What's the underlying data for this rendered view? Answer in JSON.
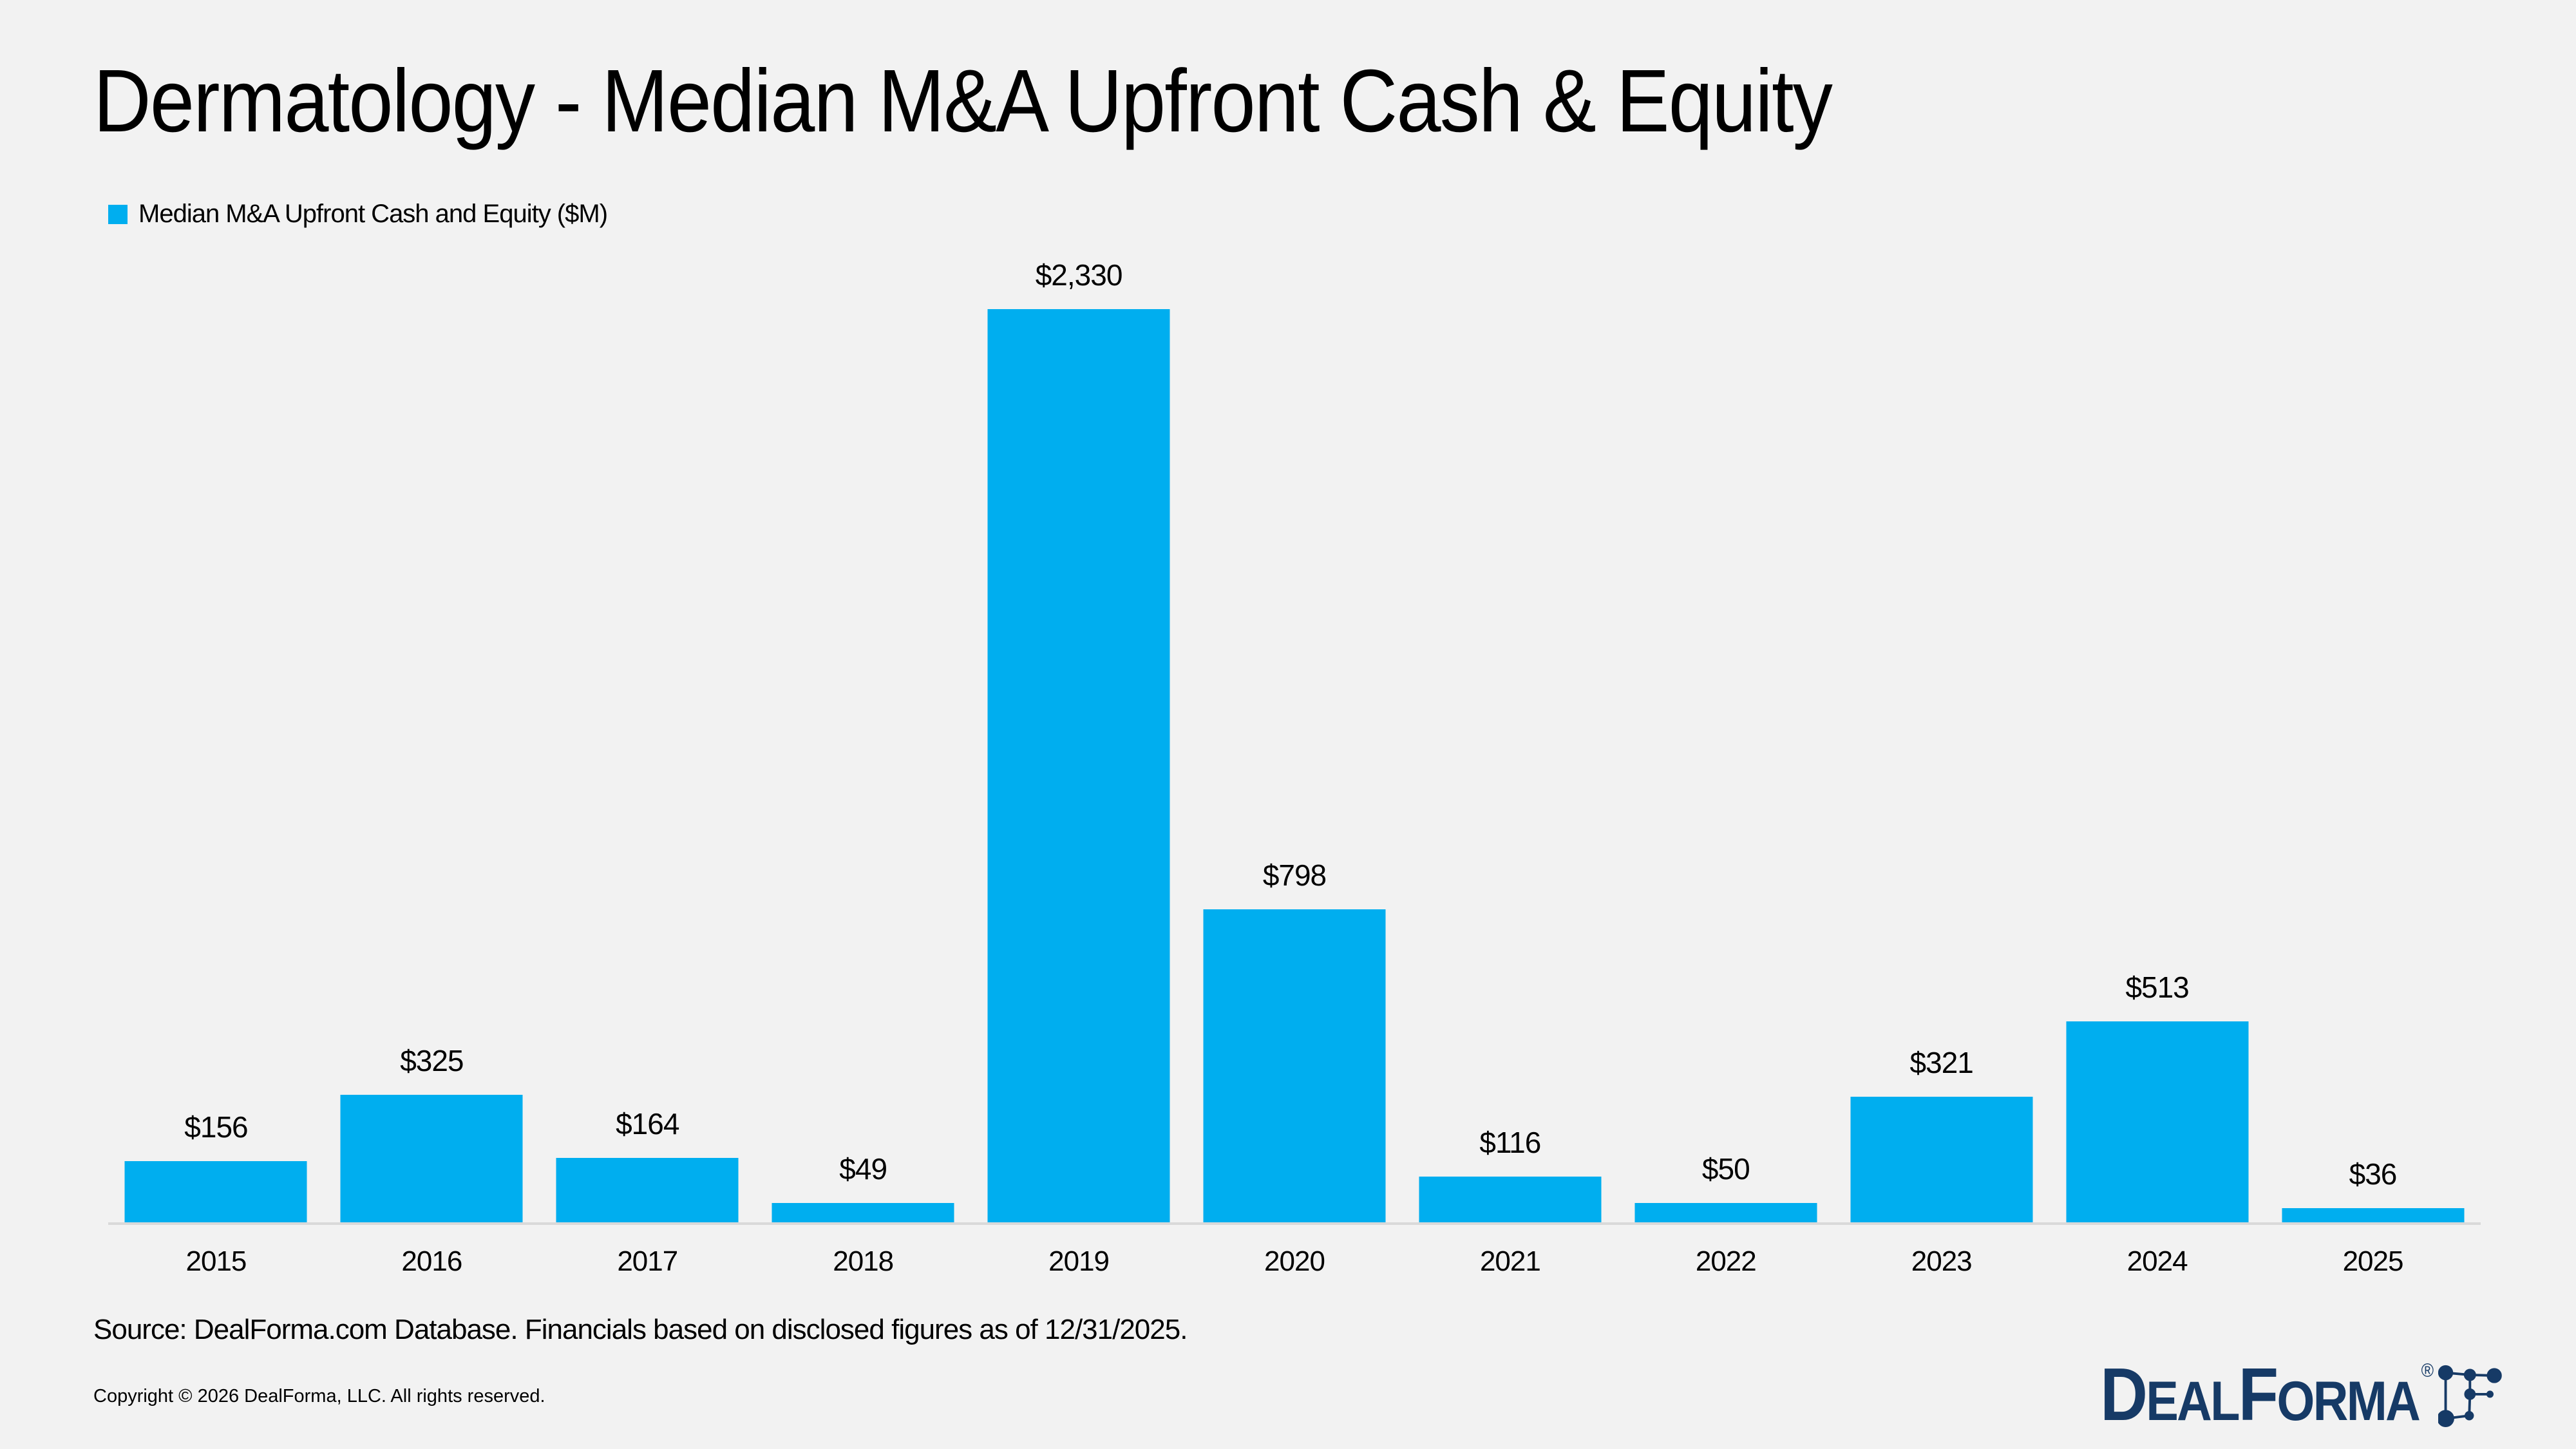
{
  "title": "Dermatology - Median M&A Upfront Cash & Equity",
  "legend": {
    "swatch_color": "#00AEEF",
    "label": "Median M&A Upfront Cash and Equity ($M)"
  },
  "chart_data": {
    "type": "bar",
    "title": "Dermatology - Median M&A Upfront Cash & Equity",
    "series_name": "Median M&A Upfront Cash and Equity ($M)",
    "categories": [
      "2015",
      "2016",
      "2017",
      "2018",
      "2019",
      "2020",
      "2021",
      "2022",
      "2023",
      "2024",
      "2025"
    ],
    "values": [
      156,
      325,
      164,
      49,
      2330,
      798,
      116,
      50,
      321,
      513,
      36
    ],
    "value_labels": [
      "$156",
      "$325",
      "$164",
      "$49",
      "$2,330",
      "$798",
      "$116",
      "$50",
      "$321",
      "$513",
      "$36"
    ],
    "xlabel": "",
    "ylabel": "",
    "ylim": [
      0,
      2430
    ],
    "grid": false,
    "legend_position": "top-left",
    "bar_color": "#00AEEF",
    "axis_line_color": "#D9D9D9"
  },
  "footer": {
    "source": "Source: DealForma.com Database. Financials based on disclosed figures as of 12/31/2025.",
    "copyright": "Copyright © 2026 DealForma, LLC. All rights reserved."
  },
  "logo": {
    "name": "DealForma",
    "wordmark_parts": {
      "d": "D",
      "eal": "EAL",
      "f": "F",
      "orma": "ORMA"
    },
    "registered_mark": "®",
    "color": "#163A66"
  },
  "colors": {
    "background": "#F2F2F2",
    "bar": "#00AEEF",
    "text": "#000000",
    "axis_line": "#D9D9D9",
    "logo_navy": "#163A66"
  }
}
